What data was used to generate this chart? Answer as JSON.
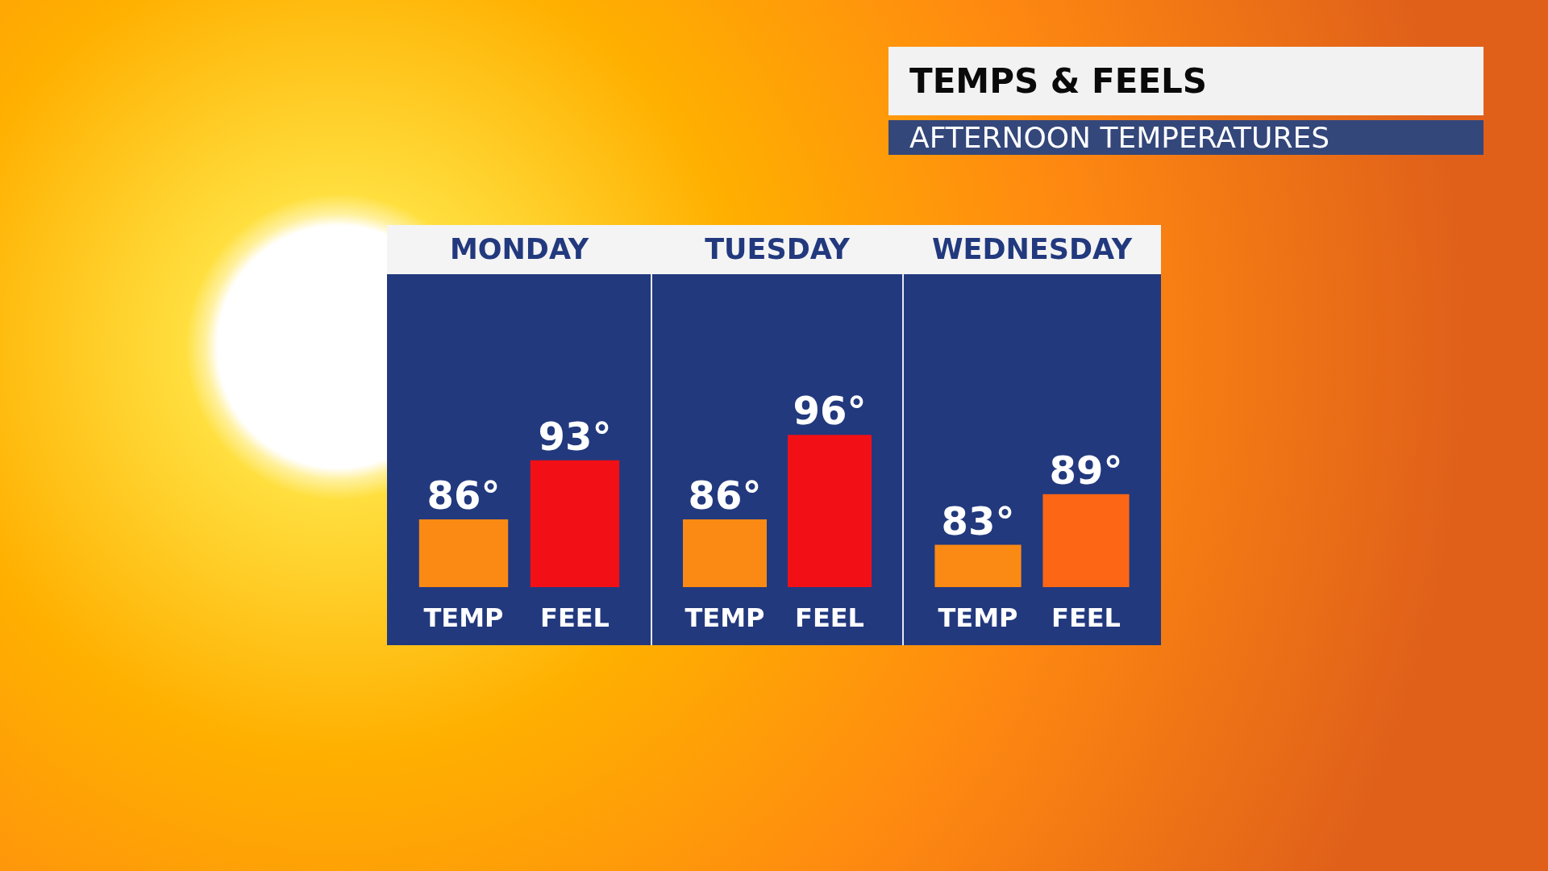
{
  "chart_data": [
    {
      "type": "other",
      "title": "TEMPS & FEELS",
      "subtitle": "AFTERNOON TEMPERATURES"
    },
    {
      "type": "bar",
      "title": "MONDAY",
      "categories": [
        "TEMP",
        "FEEL"
      ],
      "values": [
        86,
        93
      ],
      "colors": [
        "#fb8a14",
        "#f21016"
      ],
      "value_labels": [
        "86°",
        "93°"
      ],
      "ylim": [
        78,
        115
      ],
      "tick_labels": "x",
      "grid": false
    },
    {
      "type": "bar",
      "title": "TUESDAY",
      "categories": [
        "TEMP",
        "FEEL"
      ],
      "values": [
        86,
        96
      ],
      "colors": [
        "#fb8a14",
        "#f21016"
      ],
      "value_labels": [
        "86°",
        "96°"
      ],
      "ylim": [
        78,
        115
      ],
      "tick_labels": "x",
      "grid": false
    },
    {
      "type": "bar",
      "title": "WEDNESDAY",
      "categories": [
        "TEMP",
        "FEEL"
      ],
      "values": [
        83,
        89
      ],
      "colors": [
        "#fb8a14",
        "#fc6614"
      ],
      "value_labels": [
        "83°",
        "89°"
      ],
      "ylim": [
        78,
        115
      ],
      "tick_labels": "x",
      "grid": false
    }
  ]
}
